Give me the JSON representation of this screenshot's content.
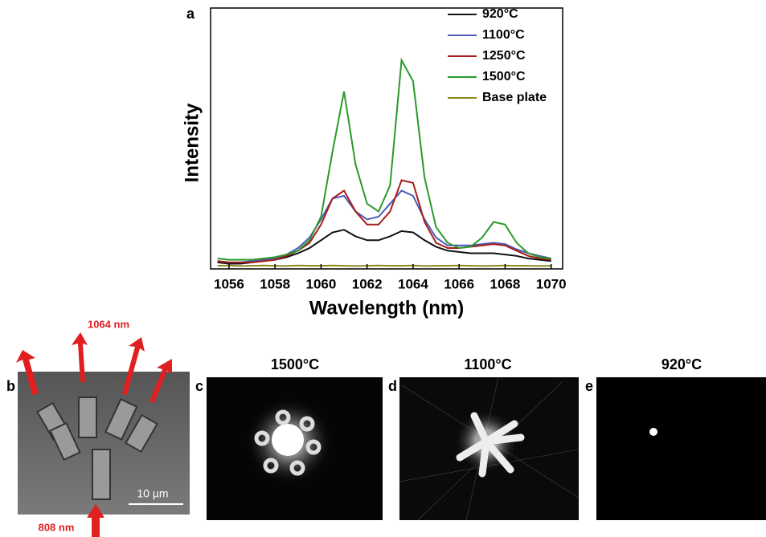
{
  "chart_data": {
    "type": "line",
    "panel_label": "a",
    "x_label": "Wavelength (nm)",
    "y_label": "Intensity",
    "x": [
      1055.5,
      1056,
      1056.5,
      1057,
      1057.5,
      1058,
      1058.5,
      1059,
      1059.5,
      1060,
      1060.5,
      1061,
      1061.5,
      1062,
      1062.5,
      1063,
      1063.5,
      1064,
      1064.5,
      1065,
      1065.5,
      1066,
      1066.5,
      1067,
      1067.5,
      1068,
      1068.5,
      1069,
      1069.5,
      1070
    ],
    "series": [
      {
        "name": "920°C",
        "color": "#111111",
        "values": [
          2.5,
          2,
          2,
          2.5,
          3,
          3.5,
          4.5,
          6,
          8,
          11,
          14,
          15,
          12.5,
          11,
          11,
          12.5,
          14.5,
          14,
          11,
          8.5,
          7,
          6.5,
          6,
          6,
          6,
          5.5,
          5,
          4,
          3.5,
          3
        ]
      },
      {
        "name": "1100°C",
        "color": "#4a5bb8",
        "values": [
          3,
          2.5,
          2.5,
          3,
          3.5,
          4,
          5.5,
          8,
          12,
          19,
          27,
          28,
          22,
          19,
          20,
          25,
          30,
          28,
          19,
          12,
          9,
          9,
          9,
          9.5,
          10,
          9.5,
          7.5,
          6,
          5,
          4
        ]
      },
      {
        "name": "1250°C",
        "color": "#a81c1c",
        "values": [
          3,
          2.5,
          2.5,
          2.5,
          3,
          3.5,
          5,
          7,
          10,
          17,
          27,
          30,
          22,
          17,
          17,
          22,
          34,
          33,
          18,
          10,
          8,
          8,
          8.5,
          9,
          9.5,
          9,
          7,
          5,
          4,
          3.5
        ]
      },
      {
        "name": "1500°C",
        "color": "#2a9a2a",
        "values": [
          4,
          3.5,
          3.5,
          3.5,
          4,
          4.5,
          5.5,
          7,
          11,
          20,
          45,
          68,
          40,
          25,
          22,
          32,
          80,
          72,
          35,
          16,
          10,
          8,
          8.5,
          12,
          18,
          17,
          10,
          6,
          4.5,
          4
        ]
      },
      {
        "name": "Base plate",
        "color": "#8a8a20",
        "values": [
          1.2,
          1.3,
          1.1,
          1.2,
          1.3,
          1.2,
          1.1,
          1.3,
          1.2,
          1.2,
          1.3,
          1.2,
          1.1,
          1.2,
          1.3,
          1.2,
          1.2,
          1.3,
          1.1,
          1.2,
          1.2,
          1.3,
          1.2,
          1.1,
          1.2,
          1.3,
          1.2,
          1.2,
          1.1,
          1.2
        ]
      }
    ],
    "xlim": [
      1055.2,
      1070.5
    ],
    "ylim": [
      0,
      100
    ],
    "xticks": [
      1056,
      1058,
      1060,
      1062,
      1064,
      1066,
      1068,
      1070
    ]
  },
  "panels": {
    "b": {
      "label": "b",
      "top_arrow": "1064 nm",
      "bottom_arrow": "808 nm",
      "scale_bar": "10 µm"
    },
    "c": {
      "label": "c",
      "title": "1500°C"
    },
    "d": {
      "label": "d",
      "title": "1100°C"
    },
    "e": {
      "label": "e",
      "title": "920°C"
    }
  }
}
